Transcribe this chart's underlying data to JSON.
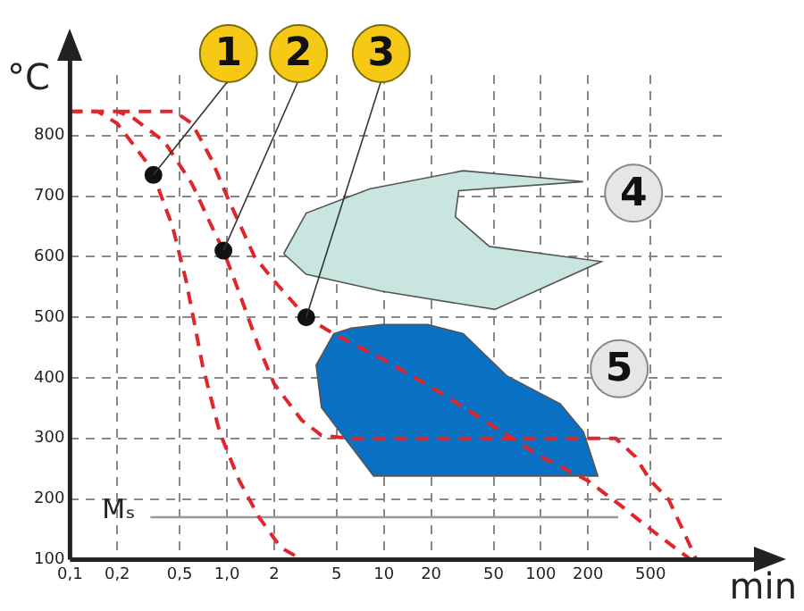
{
  "chart_data": {
    "type": "line",
    "xlabel": "min",
    "ylabel": "°C",
    "xlim": [
      0.1,
      1500
    ],
    "ylim": [
      100,
      900
    ],
    "log": "x",
    "grid": true,
    "line_style": "dashed",
    "legend": false,
    "xticks": [
      {
        "value": 0.1,
        "label": "0,1"
      },
      {
        "value": 0.2,
        "label": "0,2"
      },
      {
        "value": 0.5,
        "label": "0,5"
      },
      {
        "value": 1,
        "label": "1,0"
      },
      2,
      5,
      10,
      20,
      50,
      100,
      200,
      500
    ],
    "yticks": [
      100,
      200,
      300,
      400,
      500,
      600,
      700,
      800
    ],
    "series": [
      {
        "type": "area",
        "color": "#c8e6df",
        "x": [
          2.3,
          3.2,
          8.1,
          32,
          186,
          30,
          28.5,
          47,
          243,
          51,
          9.7,
          3.2,
          2.3
        ],
        "values": [
          605,
          672,
          712,
          742,
          724,
          709,
          666,
          617,
          592,
          513,
          543,
          571,
          605
        ]
      },
      {
        "type": "area",
        "color": "#0a70c4",
        "x": [
          4.8,
          3.7,
          4,
          8.6,
          231,
          187,
          133,
          61,
          32,
          19,
          9.7,
          6.2,
          4.8
        ],
        "values": [
          473,
          421,
          351,
          238,
          238,
          311,
          357,
          403,
          473,
          488,
          488,
          482,
          473
        ]
      },
      {
        "color": "#e0262a",
        "x": [
          0.1,
          0.15,
          0.2,
          0.3,
          0.34,
          0.45,
          0.55,
          0.7,
          0.9,
          1.2,
          1.6,
          2.2,
          3
        ],
        "values": [
          840,
          840,
          820,
          760,
          735,
          650,
          560,
          420,
          310,
          230,
          170,
          120,
          100
        ]
      },
      {
        "color": "#e0262a",
        "x": [
          0.1,
          0.2,
          0.25,
          0.4,
          0.6,
          0.8,
          0.95,
          1.2,
          1.6,
          2,
          3,
          4,
          6,
          20,
          100,
          300,
          400,
          500,
          650,
          800,
          980
        ],
        "values": [
          840,
          840,
          830,
          790,
          720,
          650,
          610,
          540,
          450,
          390,
          330,
          305,
          300,
          300,
          300,
          300,
          270,
          230,
          200,
          150,
          100
        ]
      },
      {
        "color": "#e0262a",
        "x": [
          0.2,
          0.46,
          0.6,
          0.8,
          1,
          1.5,
          2,
          3.2,
          5,
          10,
          20,
          50,
          100,
          200,
          320,
          500,
          900
        ],
        "values": [
          840,
          840,
          820,
          760,
          700,
          600,
          560,
          500,
          470,
          430,
          385,
          320,
          270,
          230,
          190,
          150,
          100
        ]
      },
      {
        "type": "scatter",
        "color": "#111111",
        "marker": "circle",
        "x": [
          0.34,
          0.95,
          3.2
        ],
        "values": [
          735,
          610,
          500
        ]
      }
    ],
    "ref_lines": [
      {
        "axis": "y",
        "value": 170,
        "label": "Mₛ",
        "color": "#999999"
      }
    ],
    "annotations": [
      {
        "text": "1",
        "x": 0.34,
        "y": 735
      },
      {
        "text": "2",
        "x": 0.95,
        "y": 610
      },
      {
        "text": "3",
        "x": 3.2,
        "y": 500
      },
      {
        "text": "4",
        "x": 390,
        "y": 705
      },
      {
        "text": "5",
        "x": 316,
        "y": 415
      }
    ]
  }
}
